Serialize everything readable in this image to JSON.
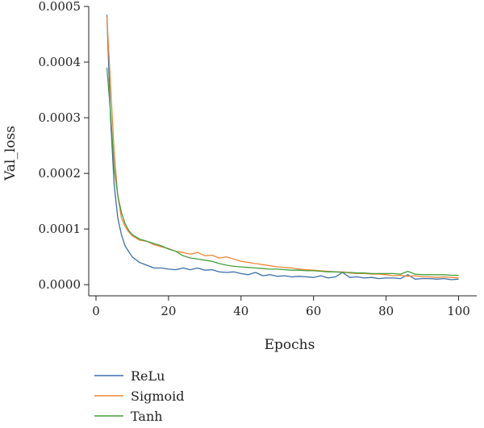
{
  "chart_data": {
    "type": "line",
    "title": "",
    "xlabel": "Epochs",
    "ylabel": "Val_loss",
    "xlim": [
      -2,
      105
    ],
    "ylim": [
      -2e-05,
      0.0005
    ],
    "x_ticks": [
      0,
      20,
      40,
      60,
      80,
      100
    ],
    "x_tick_labels": [
      "0",
      "20",
      "40",
      "60",
      "80",
      "100"
    ],
    "y_ticks": [
      0.0,
      0.0001,
      0.0002,
      0.0003,
      0.0004,
      0.0005
    ],
    "y_tick_labels": [
      "0.0000",
      "0.0001",
      "0.0002",
      "0.0003",
      "0.0004",
      "0.0005"
    ],
    "grid": false,
    "legend_position": "below",
    "x": [
      3,
      4,
      5,
      6,
      7,
      8,
      9,
      10,
      12,
      14,
      16,
      18,
      20,
      22,
      24,
      26,
      28,
      30,
      32,
      34,
      36,
      38,
      40,
      42,
      44,
      46,
      48,
      50,
      52,
      54,
      56,
      58,
      60,
      62,
      64,
      66,
      68,
      70,
      72,
      74,
      76,
      78,
      80,
      82,
      84,
      86,
      88,
      90,
      92,
      94,
      96,
      98,
      100
    ],
    "series": [
      {
        "name": "ReLu",
        "color": "#3b6fa8",
        "values": [
          0.000485,
          0.0003,
          0.00018,
          0.00012,
          9e-05,
          7e-05,
          6e-05,
          5e-05,
          4e-05,
          3.5e-05,
          3e-05,
          3e-05,
          2.8e-05,
          2.7e-05,
          3e-05,
          2.7e-05,
          3e-05,
          2.6e-05,
          2.7e-05,
          2.3e-05,
          2.2e-05,
          2.3e-05,
          2e-05,
          1.8e-05,
          2.2e-05,
          1.6e-05,
          1.8e-05,
          1.5e-05,
          1.6e-05,
          1.4e-05,
          1.5e-05,
          1.4e-05,
          1.3e-05,
          1.6e-05,
          1.2e-05,
          1.4e-05,
          2.2e-05,
          1.3e-05,
          1.4e-05,
          1.2e-05,
          1.3e-05,
          1.1e-05,
          1.2e-05,
          1.2e-05,
          1.1e-05,
          1.8e-05,
          1e-05,
          1.1e-05,
          1.1e-05,
          1e-05,
          1.1e-05,
          9e-06,
          1e-05
        ]
      },
      {
        "name": "Sigmoid",
        "color": "#ef8637",
        "values": [
          0.000482,
          0.00036,
          0.00024,
          0.00016,
          0.00012,
          0.000105,
          9.5e-05,
          8.8e-05,
          8e-05,
          7.8e-05,
          7.2e-05,
          6.8e-05,
          6.5e-05,
          6e-05,
          5.8e-05,
          5.5e-05,
          5.8e-05,
          5.2e-05,
          5.3e-05,
          4.8e-05,
          5e-05,
          4.6e-05,
          4.2e-05,
          4e-05,
          3.8e-05,
          3.6e-05,
          3.4e-05,
          3.2e-05,
          3.1e-05,
          3e-05,
          2.8e-05,
          2.7e-05,
          2.6e-05,
          2.5e-05,
          2.4e-05,
          2.3e-05,
          2.3e-05,
          2.1e-05,
          2e-05,
          2e-05,
          1.9e-05,
          1.9e-05,
          1.8e-05,
          1.6e-05,
          1.7e-05,
          1.5e-05,
          1.6e-05,
          1.4e-05,
          1.4e-05,
          1.3e-05,
          1.4e-05,
          1.3e-05,
          1.2e-05
        ]
      },
      {
        "name": "Tanh",
        "color": "#43a03b",
        "values": [
          0.00039,
          0.00031,
          0.00021,
          0.00016,
          0.00013,
          0.00011,
          9.8e-05,
          9e-05,
          8.2e-05,
          7.8e-05,
          7.4e-05,
          7e-05,
          6.4e-05,
          6e-05,
          5.2e-05,
          4.8e-05,
          4.6e-05,
          4.4e-05,
          4.2e-05,
          3.8e-05,
          3.5e-05,
          3.3e-05,
          3.2e-05,
          3.1e-05,
          3e-05,
          2.9e-05,
          2.8e-05,
          2.8e-05,
          2.7e-05,
          2.6e-05,
          2.6e-05,
          2.5e-05,
          2.5e-05,
          2.4e-05,
          2.3e-05,
          2.3e-05,
          2.2e-05,
          2.2e-05,
          2.1e-05,
          2.1e-05,
          2e-05,
          2e-05,
          2e-05,
          2e-05,
          1.9e-05,
          2.4e-05,
          1.9e-05,
          1.8e-05,
          1.8e-05,
          1.8e-05,
          1.8e-05,
          1.7e-05,
          1.7e-05
        ]
      }
    ]
  }
}
